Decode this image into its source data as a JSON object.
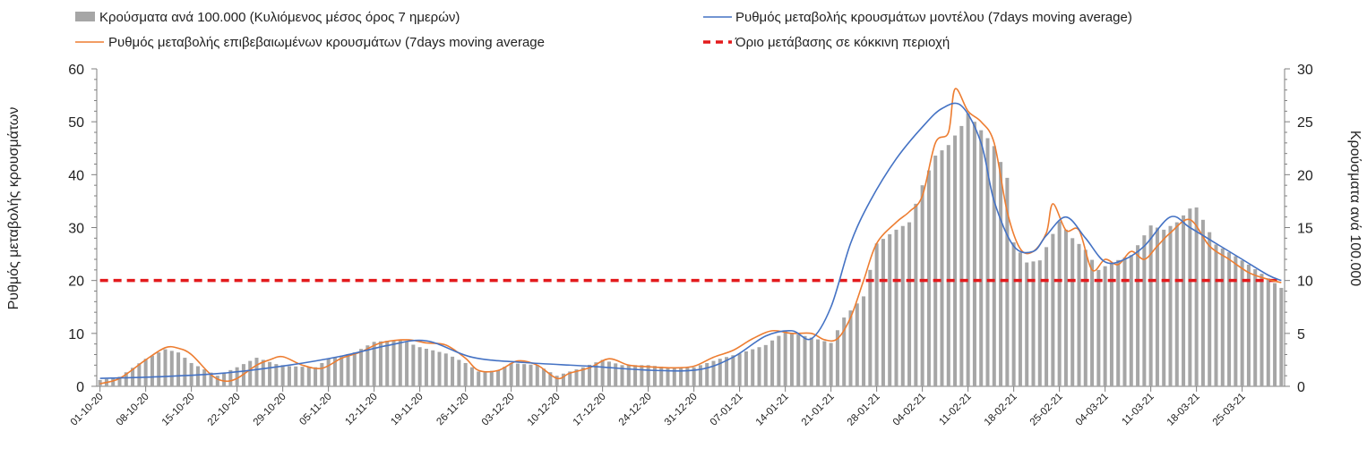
{
  "chart_data": {
    "type": "bar+line",
    "title": "",
    "y_left_label": "Ρυθμός μεταβολής κρουσμάτων",
    "y_right_label": "Κρούσματα ανά 100.000",
    "y_left_range": [
      0,
      60
    ],
    "y_right_range": [
      0,
      30
    ],
    "y_left_ticks": [
      "0",
      "10",
      "20",
      "30",
      "40",
      "50",
      "60"
    ],
    "y_right_ticks": [
      "0",
      "5",
      "10",
      "15",
      "20",
      "25",
      "30"
    ],
    "x_tick_labels": [
      "01-10-20",
      "08-10-20",
      "15-10-20",
      "22-10-20",
      "29-10-20",
      "05-11-20",
      "12-11-20",
      "19-11-20",
      "26-11-20",
      "03-12-20",
      "10-12-20",
      "17-12-20",
      "24-12-20",
      "31-12-20",
      "07-01-21",
      "14-01-21",
      "21-01-21",
      "28-01-21",
      "04-02-21",
      "11-02-21",
      "18-02-21",
      "25-02-21",
      "04-03-21",
      "11-03-21",
      "18-03-21",
      "25-03-21"
    ],
    "x_start_date": "2020-10-01",
    "x_end_date": "2021-03-31",
    "grid": false,
    "legend_position": "top",
    "legend": [
      {
        "key": "bars",
        "label": "Κρούσματα ανά 100.000 (Κυλιόμενος μέσος όρος 7 ημερών)"
      },
      {
        "key": "model",
        "label": "Ρυθμός μεταβολής κρουσμάτων μοντέλου (7days moving average)"
      },
      {
        "key": "confirmed",
        "label": "Ρυθμός μεταβολής επιβεβαιωμένων κρουσμάτων (7days moving average"
      },
      {
        "key": "threshold",
        "label": "Όριο μετάβασης σε κόκκινη περιοχή"
      }
    ],
    "colors": {
      "bars": "#a6a6a6",
      "model": "#4472c4",
      "confirmed": "#ed7d31",
      "threshold": "#e31a1c"
    },
    "series": {
      "bars": {
        "axis": "right",
        "dates": [
          "2020-10-01",
          "2020-10-04",
          "2020-10-08",
          "2020-10-11",
          "2020-10-13",
          "2020-10-15",
          "2020-10-19",
          "2020-10-22",
          "2020-10-25",
          "2020-10-28",
          "2020-10-30",
          "2020-11-03",
          "2020-11-05",
          "2020-11-09",
          "2020-11-12",
          "2020-11-16",
          "2020-11-19",
          "2020-11-23",
          "2020-11-26",
          "2020-11-28",
          "2020-12-01",
          "2020-12-03",
          "2020-12-07",
          "2020-12-10",
          "2020-12-14",
          "2020-12-17",
          "2020-12-20",
          "2020-12-24",
          "2020-12-28",
          "2020-12-31",
          "2021-01-04",
          "2021-01-07",
          "2021-01-11",
          "2021-01-14",
          "2021-01-18",
          "2021-01-21",
          "2021-01-23",
          "2021-01-26",
          "2021-01-28",
          "2021-01-31",
          "2021-02-02",
          "2021-02-04",
          "2021-02-06",
          "2021-02-08",
          "2021-02-10",
          "2021-02-11",
          "2021-02-13",
          "2021-02-15",
          "2021-02-17",
          "2021-02-18",
          "2021-02-20",
          "2021-02-22",
          "2021-02-24",
          "2021-02-25",
          "2021-02-27",
          "2021-03-01",
          "2021-03-03",
          "2021-03-05",
          "2021-03-08",
          "2021-03-11",
          "2021-03-13",
          "2021-03-15",
          "2021-03-17",
          "2021-03-18",
          "2021-03-21",
          "2021-03-24",
          "2021-03-26",
          "2021-03-29",
          "2021-03-31"
        ],
        "values": [
          0.6,
          0.9,
          2.6,
          3.5,
          3.2,
          2.2,
          1.0,
          1.8,
          2.7,
          2.1,
          1.9,
          1.8,
          2.6,
          3.2,
          4.2,
          4.4,
          3.7,
          3.1,
          2.2,
          1.4,
          1.5,
          2.2,
          2.0,
          1.0,
          1.8,
          2.5,
          2.0,
          2.0,
          1.7,
          1.8,
          2.6,
          3.1,
          3.9,
          5.2,
          4.6,
          4.1,
          6.5,
          8.5,
          13.5,
          14.8,
          15.5,
          19.0,
          21.8,
          22.8,
          24.6,
          25.8,
          24.2,
          22.7,
          19.7,
          13.6,
          11.7,
          11.9,
          14.4,
          15.6,
          14.0,
          12.9,
          11.0,
          11.7,
          12.4,
          15.2,
          14.8,
          15.5,
          16.8,
          16.9,
          13.4,
          12.3,
          11.5,
          10.2,
          9.3
        ]
      },
      "confirmed": {
        "axis": "left",
        "dates": [
          "2020-10-01",
          "2020-10-04",
          "2020-10-08",
          "2020-10-11",
          "2020-10-13",
          "2020-10-15",
          "2020-10-18",
          "2020-10-20",
          "2020-10-22",
          "2020-10-25",
          "2020-10-27",
          "2020-10-29",
          "2020-11-01",
          "2020-11-04",
          "2020-11-07",
          "2020-11-10",
          "2020-11-13",
          "2020-11-17",
          "2020-11-20",
          "2020-11-23",
          "2020-11-26",
          "2020-11-28",
          "2020-12-01",
          "2020-12-04",
          "2020-12-07",
          "2020-12-10",
          "2020-12-12",
          "2020-12-15",
          "2020-12-18",
          "2020-12-21",
          "2020-12-24",
          "2020-12-28",
          "2020-12-31",
          "2021-01-03",
          "2021-01-06",
          "2021-01-09",
          "2021-01-12",
          "2021-01-15",
          "2021-01-18",
          "2021-01-20",
          "2021-01-22",
          "2021-01-24",
          "2021-01-26",
          "2021-01-28",
          "2021-01-31",
          "2021-02-02",
          "2021-02-04",
          "2021-02-06",
          "2021-02-08",
          "2021-02-09",
          "2021-02-11",
          "2021-02-13",
          "2021-02-15",
          "2021-02-17",
          "2021-02-19",
          "2021-02-21",
          "2021-02-23",
          "2021-02-24",
          "2021-02-26",
          "2021-02-28",
          "2021-03-02",
          "2021-03-04",
          "2021-03-06",
          "2021-03-08",
          "2021-03-10",
          "2021-03-12",
          "2021-03-14",
          "2021-03-17",
          "2021-03-20",
          "2021-03-23",
          "2021-03-26",
          "2021-03-29",
          "2021-03-31"
        ],
        "values": [
          0.5,
          1.5,
          5.0,
          7.3,
          7.2,
          6.0,
          2.2,
          1.0,
          1.5,
          4.0,
          5.0,
          5.6,
          4.0,
          3.4,
          5.3,
          6.5,
          8.2,
          8.8,
          8.2,
          7.8,
          5.3,
          3.0,
          3.0,
          4.8,
          4.0,
          1.5,
          2.5,
          3.5,
          5.2,
          4.0,
          3.7,
          3.5,
          3.8,
          5.5,
          6.8,
          9.0,
          10.5,
          10.0,
          10.0,
          8.8,
          9.0,
          13.0,
          20.0,
          27.0,
          31.0,
          33.0,
          36.0,
          46.0,
          48.0,
          56.2,
          52.0,
          50.0,
          46.0,
          33.0,
          26.0,
          25.5,
          29.0,
          34.5,
          29.5,
          29.5,
          22.0,
          24.0,
          23.0,
          25.5,
          24.0,
          26.5,
          29.0,
          31.5,
          26.5,
          24.0,
          21.5,
          20.2,
          19.6
        ]
      },
      "model": {
        "axis": "left",
        "dates": [
          "2020-10-01",
          "2020-10-10",
          "2020-10-20",
          "2020-10-30",
          "2020-11-07",
          "2020-11-14",
          "2020-11-20",
          "2020-11-27",
          "2020-12-05",
          "2020-12-15",
          "2020-12-25",
          "2021-01-01",
          "2021-01-06",
          "2021-01-11",
          "2021-01-15",
          "2021-01-18",
          "2021-01-21",
          "2021-01-24",
          "2021-01-27",
          "2021-01-31",
          "2021-02-04",
          "2021-02-07",
          "2021-02-10",
          "2021-02-13",
          "2021-02-15",
          "2021-02-18",
          "2021-02-21",
          "2021-02-23",
          "2021-02-26",
          "2021-03-01",
          "2021-03-04",
          "2021-03-07",
          "2021-03-10",
          "2021-03-14",
          "2021-03-17",
          "2021-03-21",
          "2021-03-25",
          "2021-03-29",
          "2021-03-31"
        ],
        "values": [
          1.5,
          1.8,
          2.5,
          4.0,
          5.7,
          7.7,
          8.6,
          5.5,
          4.5,
          3.8,
          3.0,
          3.2,
          5.5,
          9.5,
          10.5,
          9.0,
          15.0,
          27.0,
          35.0,
          43.0,
          49.0,
          52.5,
          53.0,
          46.0,
          35.0,
          26.5,
          25.5,
          28.5,
          32.0,
          28.0,
          23.5,
          24.0,
          26.5,
          32.0,
          30.0,
          27.0,
          24.0,
          21.0,
          20.0
        ]
      },
      "threshold": {
        "axis": "left",
        "value": 20
      }
    }
  }
}
